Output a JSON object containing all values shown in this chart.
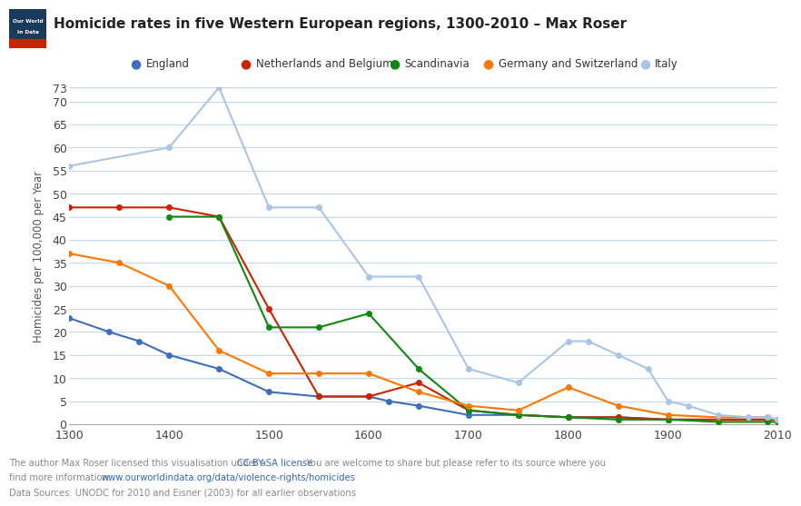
{
  "title": "Homicide rates in five Western European regions, 1300-2010 – Max Roser",
  "ylabel": "Homicides per 100,000 per Year",
  "background_color": "#ffffff",
  "plot_bg_color": "#ffffff",
  "grid_color": "#c8d8e8",
  "yticks": [
    0,
    5,
    10,
    15,
    20,
    25,
    30,
    35,
    40,
    45,
    50,
    55,
    60,
    65,
    70,
    73
  ],
  "xticks": [
    1300,
    1400,
    1500,
    1600,
    1700,
    1800,
    1900,
    2010
  ],
  "xlim": [
    1300,
    2010
  ],
  "ylim": [
    0,
    73
  ],
  "series": {
    "England": {
      "color": "#3d6dbf",
      "x": [
        1300,
        1340,
        1370,
        1400,
        1450,
        1500,
        1550,
        1600,
        1620,
        1650,
        1700,
        1750,
        1800,
        1850,
        1900,
        1950,
        2000,
        2010
      ],
      "y": [
        23,
        20,
        18,
        15,
        12,
        7,
        6,
        6,
        5,
        4,
        2,
        2,
        1.5,
        1.5,
        1,
        1,
        1,
        1
      ]
    },
    "Netherlands and Belgium": {
      "color": "#cc2200",
      "x": [
        1300,
        1350,
        1400,
        1450,
        1500,
        1550,
        1600,
        1650,
        1700,
        1750,
        1800,
        1850,
        1900,
        1950,
        2000,
        2010
      ],
      "y": [
        47,
        47,
        47,
        45,
        25,
        6,
        6,
        9,
        3,
        2,
        1.5,
        1.5,
        1,
        1,
        1,
        1
      ]
    },
    "Scandinavia": {
      "color": "#118811",
      "x": [
        1400,
        1450,
        1500,
        1550,
        1600,
        1650,
        1700,
        1750,
        1800,
        1850,
        1900,
        1950,
        2000,
        2010
      ],
      "y": [
        45,
        45,
        21,
        21,
        24,
        12,
        3,
        2,
        1.5,
        1,
        1,
        0.5,
        0.5,
        0.5
      ]
    },
    "Germany and Switzerland": {
      "color": "#ff7700",
      "x": [
        1300,
        1350,
        1400,
        1450,
        1500,
        1550,
        1600,
        1650,
        1700,
        1750,
        1800,
        1850,
        1900,
        1950,
        2000,
        2010
      ],
      "y": [
        37,
        35,
        30,
        16,
        11,
        11,
        11,
        7,
        4,
        3,
        8,
        4,
        2,
        1.5,
        1.5,
        1
      ]
    },
    "Italy": {
      "color": "#aac4e8",
      "x": [
        1300,
        1400,
        1450,
        1500,
        1550,
        1600,
        1650,
        1700,
        1750,
        1800,
        1820,
        1850,
        1880,
        1900,
        1920,
        1950,
        1980,
        2000,
        2010
      ],
      "y": [
        56,
        60,
        73,
        47,
        47,
        32,
        32,
        12,
        9,
        18,
        18,
        15,
        12,
        5,
        4,
        2,
        1.5,
        1.5,
        1
      ]
    }
  },
  "legend_items": [
    {
      "label": "England",
      "color": "#3d6dbf"
    },
    {
      "label": "Netherlands and Belgium",
      "color": "#cc2200"
    },
    {
      "label": "Scandinavia",
      "color": "#118811"
    },
    {
      "label": "Germany and Switzerland",
      "color": "#ff7700"
    },
    {
      "label": "Italy",
      "color": "#aac4e8"
    }
  ],
  "footer_line1_plain": "The author Max Roser licensed this visualisation under a ",
  "footer_line1_link": "CC BY-SA license",
  "footer_line1_end": ". You are welcome to share but please refer to its source where you",
  "footer_line2_plain": "find more information: ",
  "footer_line2_link": "www.ourworldindata.org/data/violence-rights/homicides",
  "footer_line3": "Data Sources: UNODC for 2010 and Eisner (2003) for all earlier observations",
  "text_color": "#555555",
  "link_color": "#3366bb"
}
